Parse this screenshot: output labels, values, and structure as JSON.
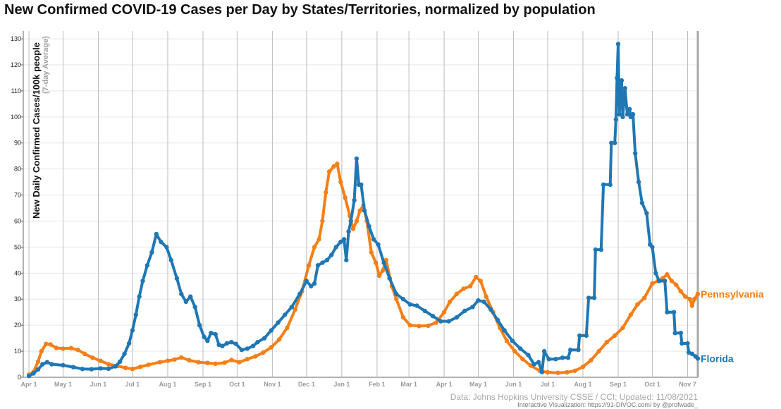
{
  "title": "New Confirmed COVID-19 Cases per Day by States/Territories, normalized by population",
  "source_note": "Data: Johns Hopkins University CSSE / CCI; Updated: 11/08/2021",
  "viz_credit": "Interactive Visualization: https://91-DIVOC.com/ by @profwade_",
  "colors": {
    "pennsylvania": "#f57f17",
    "florida": "#1f77b4",
    "grid": "#e6e6e6",
    "month_line": "#bdbdbd"
  },
  "chart_data": {
    "type": "line",
    "title": "New Confirmed COVID-19 Cases per Day by States/Territories, normalized by population",
    "ylabel": "New Daily Confirmed Cases/100k people",
    "ylabel_sub": "(7-day Average)",
    "xlabel": "",
    "ylim": [
      0,
      133
    ],
    "yticks": [
      0,
      10,
      20,
      30,
      40,
      50,
      60,
      70,
      80,
      90,
      100,
      110,
      120,
      130
    ],
    "xlim": [
      "2020-03-27",
      "2021-11-10"
    ],
    "month_ticks": [
      {
        "date": "2020-04-01",
        "label": "Apr 1"
      },
      {
        "date": "2020-05-01",
        "label": "May 1"
      },
      {
        "date": "2020-06-01",
        "label": "Jun 1"
      },
      {
        "date": "2020-07-01",
        "label": "Jul 1"
      },
      {
        "date": "2020-08-01",
        "label": "Aug 1"
      },
      {
        "date": "2020-09-01",
        "label": "Sep 1"
      },
      {
        "date": "2020-10-01",
        "label": "Oct 1"
      },
      {
        "date": "2020-11-01",
        "label": "Nov 1"
      },
      {
        "date": "2020-12-01",
        "label": "Dec 1"
      },
      {
        "date": "2021-01-01",
        "label": "Jan 1"
      },
      {
        "date": "2021-02-01",
        "label": "Feb 1"
      },
      {
        "date": "2021-03-01",
        "label": "Mar 1"
      },
      {
        "date": "2021-04-01",
        "label": "Apr 1"
      },
      {
        "date": "2021-05-01",
        "label": "May 1"
      },
      {
        "date": "2021-06-01",
        "label": "Jun 1"
      },
      {
        "date": "2021-07-01",
        "label": "Jul 1"
      },
      {
        "date": "2021-08-01",
        "label": "Aug 1"
      },
      {
        "date": "2021-09-01",
        "label": "Sep 1"
      },
      {
        "date": "2021-10-01",
        "label": "Oct 1"
      },
      {
        "date": "2021-11-01",
        "label": "Nov 7"
      }
    ],
    "grid": true,
    "series": [
      {
        "name": "Pennsylvania",
        "points": [
          [
            "2020-04-01",
            1
          ],
          [
            "2020-04-05",
            2
          ],
          [
            "2020-04-09",
            6
          ],
          [
            "2020-04-12",
            10
          ],
          [
            "2020-04-16",
            12.8
          ],
          [
            "2020-04-20",
            12.6
          ],
          [
            "2020-04-25",
            11.3
          ],
          [
            "2020-05-01",
            11
          ],
          [
            "2020-05-08",
            11.2
          ],
          [
            "2020-05-14",
            10.5
          ],
          [
            "2020-05-20",
            9
          ],
          [
            "2020-05-27",
            7.5
          ],
          [
            "2020-06-03",
            6.3
          ],
          [
            "2020-06-10",
            5
          ],
          [
            "2020-06-18",
            4.3
          ],
          [
            "2020-06-25",
            3.6
          ],
          [
            "2020-07-01",
            3.2
          ],
          [
            "2020-07-08",
            4
          ],
          [
            "2020-07-15",
            4.8
          ],
          [
            "2020-07-25",
            5.8
          ],
          [
            "2020-08-01",
            6.3
          ],
          [
            "2020-08-07",
            6.8
          ],
          [
            "2020-08-13",
            7.6
          ],
          [
            "2020-08-20",
            6.5
          ],
          [
            "2020-08-28",
            5.8
          ],
          [
            "2020-09-05",
            5.5
          ],
          [
            "2020-09-12",
            5.2
          ],
          [
            "2020-09-20",
            5.6
          ],
          [
            "2020-09-26",
            6.6
          ],
          [
            "2020-10-03",
            5.8
          ],
          [
            "2020-10-10",
            7
          ],
          [
            "2020-10-17",
            8
          ],
          [
            "2020-10-24",
            9.5
          ],
          [
            "2020-10-31",
            11.5
          ],
          [
            "2020-11-07",
            14.5
          ],
          [
            "2020-11-14",
            19
          ],
          [
            "2020-11-21",
            26
          ],
          [
            "2020-11-27",
            33
          ],
          [
            "2020-12-03",
            43
          ],
          [
            "2020-12-08",
            50
          ],
          [
            "2020-12-12",
            53
          ],
          [
            "2020-12-15",
            60
          ],
          [
            "2020-12-18",
            71
          ],
          [
            "2020-12-21",
            79
          ],
          [
            "2020-12-25",
            81
          ],
          [
            "2020-12-28",
            82
          ],
          [
            "2020-12-31",
            75
          ],
          [
            "2021-01-04",
            69
          ],
          [
            "2021-01-08",
            62
          ],
          [
            "2021-01-11",
            57
          ],
          [
            "2021-01-14",
            60
          ],
          [
            "2021-01-17",
            64
          ],
          [
            "2021-01-20",
            66
          ],
          [
            "2021-01-23",
            60
          ],
          [
            "2021-01-27",
            48
          ],
          [
            "2021-01-31",
            44
          ],
          [
            "2021-02-03",
            39
          ],
          [
            "2021-02-06",
            41
          ],
          [
            "2021-02-09",
            45
          ],
          [
            "2021-02-14",
            35
          ],
          [
            "2021-02-18",
            30
          ],
          [
            "2021-02-24",
            23
          ],
          [
            "2021-03-02",
            20
          ],
          [
            "2021-03-10",
            19.7
          ],
          [
            "2021-03-18",
            19.8
          ],
          [
            "2021-03-25",
            21
          ],
          [
            "2021-04-01",
            25
          ],
          [
            "2021-04-06",
            29
          ],
          [
            "2021-04-12",
            32
          ],
          [
            "2021-04-18",
            34
          ],
          [
            "2021-04-24",
            35
          ],
          [
            "2021-04-29",
            38.5
          ],
          [
            "2021-05-03",
            37
          ],
          [
            "2021-05-08",
            31
          ],
          [
            "2021-05-14",
            25
          ],
          [
            "2021-05-20",
            19
          ],
          [
            "2021-05-26",
            14
          ],
          [
            "2021-06-02",
            10
          ],
          [
            "2021-06-09",
            7
          ],
          [
            "2021-06-16",
            4.5
          ],
          [
            "2021-06-24",
            2.5
          ],
          [
            "2021-07-01",
            1.9
          ],
          [
            "2021-07-10",
            1.7
          ],
          [
            "2021-07-18",
            1.9
          ],
          [
            "2021-07-25",
            2.5
          ],
          [
            "2021-08-01",
            4
          ],
          [
            "2021-08-08",
            6.5
          ],
          [
            "2021-08-15",
            10
          ],
          [
            "2021-08-22",
            13.5
          ],
          [
            "2021-08-29",
            16
          ],
          [
            "2021-09-05",
            19
          ],
          [
            "2021-09-12",
            24
          ],
          [
            "2021-09-18",
            28
          ],
          [
            "2021-09-24",
            30.5
          ],
          [
            "2021-10-01",
            36
          ],
          [
            "2021-10-06",
            37
          ],
          [
            "2021-10-10",
            38
          ],
          [
            "2021-10-14",
            39.5
          ],
          [
            "2021-10-18",
            37
          ],
          [
            "2021-10-22",
            35.5
          ],
          [
            "2021-10-26",
            33
          ],
          [
            "2021-10-30",
            31
          ],
          [
            "2021-11-03",
            30
          ],
          [
            "2021-11-05",
            27.5
          ],
          [
            "2021-11-07",
            30
          ],
          [
            "2021-11-10",
            32
          ]
        ]
      },
      {
        "name": "Florida",
        "points": [
          [
            "2020-04-01",
            0.5
          ],
          [
            "2020-04-05",
            1.5
          ],
          [
            "2020-04-09",
            3
          ],
          [
            "2020-04-13",
            5
          ],
          [
            "2020-04-17",
            5.8
          ],
          [
            "2020-04-21",
            5
          ],
          [
            "2020-05-01",
            4.6
          ],
          [
            "2020-05-10",
            3.9
          ],
          [
            "2020-05-18",
            3.2
          ],
          [
            "2020-05-26",
            3.1
          ],
          [
            "2020-06-03",
            3.4
          ],
          [
            "2020-06-10",
            3.3
          ],
          [
            "2020-06-16",
            4.2
          ],
          [
            "2020-06-20",
            6
          ],
          [
            "2020-06-24",
            9
          ],
          [
            "2020-06-28",
            13
          ],
          [
            "2020-07-01",
            18
          ],
          [
            "2020-07-04",
            24
          ],
          [
            "2020-07-07",
            31
          ],
          [
            "2020-07-10",
            37
          ],
          [
            "2020-07-14",
            43
          ],
          [
            "2020-07-18",
            48
          ],
          [
            "2020-07-22",
            55
          ],
          [
            "2020-07-26",
            52
          ],
          [
            "2020-07-31",
            50
          ],
          [
            "2020-08-04",
            45
          ],
          [
            "2020-08-09",
            38
          ],
          [
            "2020-08-13",
            32
          ],
          [
            "2020-08-17",
            29
          ],
          [
            "2020-08-21",
            31
          ],
          [
            "2020-08-25",
            27
          ],
          [
            "2020-08-29",
            20
          ],
          [
            "2020-09-02",
            15.5
          ],
          [
            "2020-09-05",
            14
          ],
          [
            "2020-09-08",
            17
          ],
          [
            "2020-09-12",
            16.5
          ],
          [
            "2020-09-15",
            12.5
          ],
          [
            "2020-09-18",
            12
          ],
          [
            "2020-09-22",
            13
          ],
          [
            "2020-09-26",
            13.5
          ],
          [
            "2020-09-30",
            12.8
          ],
          [
            "2020-10-05",
            10.5
          ],
          [
            "2020-10-10",
            11
          ],
          [
            "2020-10-15",
            12
          ],
          [
            "2020-10-19",
            13.5
          ],
          [
            "2020-10-25",
            15
          ],
          [
            "2020-10-31",
            18
          ],
          [
            "2020-11-06",
            21
          ],
          [
            "2020-11-12",
            24
          ],
          [
            "2020-11-18",
            27
          ],
          [
            "2020-11-25",
            32
          ],
          [
            "2020-12-01",
            37
          ],
          [
            "2020-12-05",
            35
          ],
          [
            "2020-12-08",
            36
          ],
          [
            "2020-12-11",
            43
          ],
          [
            "2020-12-15",
            44
          ],
          [
            "2020-12-19",
            45
          ],
          [
            "2020-12-23",
            47
          ],
          [
            "2020-12-27",
            50
          ],
          [
            "2020-12-31",
            52
          ],
          [
            "2021-01-03",
            53
          ],
          [
            "2021-01-05",
            45
          ],
          [
            "2021-01-07",
            56
          ],
          [
            "2021-01-09",
            60
          ],
          [
            "2021-01-12",
            68
          ],
          [
            "2021-01-14",
            84
          ],
          [
            "2021-01-16",
            74
          ],
          [
            "2021-01-18",
            74
          ],
          [
            "2021-01-21",
            64
          ],
          [
            "2021-01-25",
            58
          ],
          [
            "2021-01-29",
            53
          ],
          [
            "2021-02-02",
            51
          ],
          [
            "2021-02-07",
            44
          ],
          [
            "2021-02-12",
            38
          ],
          [
            "2021-02-18",
            32
          ],
          [
            "2021-02-24",
            30
          ],
          [
            "2021-03-02",
            28
          ],
          [
            "2021-03-08",
            27.5
          ],
          [
            "2021-03-15",
            25.5
          ],
          [
            "2021-03-22",
            23.5
          ],
          [
            "2021-03-29",
            21.5
          ],
          [
            "2021-04-05",
            21.5
          ],
          [
            "2021-04-12",
            23
          ],
          [
            "2021-04-19",
            25.5
          ],
          [
            "2021-04-26",
            27
          ],
          [
            "2021-05-01",
            29.5
          ],
          [
            "2021-05-06",
            29
          ],
          [
            "2021-05-12",
            26
          ],
          [
            "2021-05-18",
            22
          ],
          [
            "2021-05-24",
            18
          ],
          [
            "2021-05-31",
            14
          ],
          [
            "2021-06-07",
            11
          ],
          [
            "2021-06-14",
            8.5
          ],
          [
            "2021-06-19",
            5
          ],
          [
            "2021-06-23",
            5.8
          ],
          [
            "2021-06-26",
            2
          ],
          [
            "2021-06-28",
            10
          ],
          [
            "2021-07-02",
            7
          ],
          [
            "2021-07-08",
            7
          ],
          [
            "2021-07-14",
            7.5
          ],
          [
            "2021-07-19",
            7.5
          ],
          [
            "2021-07-21",
            10.5
          ],
          [
            "2021-07-28",
            10.5
          ],
          [
            "2021-07-29",
            16
          ],
          [
            "2021-08-04",
            16
          ],
          [
            "2021-08-06",
            30.5
          ],
          [
            "2021-08-11",
            30.5
          ],
          [
            "2021-08-12",
            49
          ],
          [
            "2021-08-17",
            49
          ],
          [
            "2021-08-19",
            74
          ],
          [
            "2021-08-25",
            74
          ],
          [
            "2021-08-26",
            90
          ],
          [
            "2021-08-29",
            90
          ],
          [
            "2021-08-30",
            99
          ],
          [
            "2021-08-31",
            115
          ],
          [
            "2021-09-01",
            128
          ],
          [
            "2021-09-02",
            101
          ],
          [
            "2021-09-04",
            114
          ],
          [
            "2021-09-05",
            100
          ],
          [
            "2021-09-07",
            111
          ],
          [
            "2021-09-09",
            101
          ],
          [
            "2021-09-11",
            103
          ],
          [
            "2021-09-12",
            100
          ],
          [
            "2021-09-14",
            101
          ],
          [
            "2021-09-16",
            86
          ],
          [
            "2021-09-19",
            75
          ],
          [
            "2021-09-22",
            67
          ],
          [
            "2021-09-26",
            63
          ],
          [
            "2021-09-29",
            51
          ],
          [
            "2021-10-01",
            50
          ],
          [
            "2021-10-04",
            40
          ],
          [
            "2021-10-07",
            37
          ],
          [
            "2021-10-12",
            37
          ],
          [
            "2021-10-14",
            25
          ],
          [
            "2021-10-20",
            25
          ],
          [
            "2021-10-21",
            17
          ],
          [
            "2021-10-26",
            17
          ],
          [
            "2021-10-27",
            13
          ],
          [
            "2021-11-01",
            13
          ],
          [
            "2021-11-02",
            9.5
          ],
          [
            "2021-11-05",
            9
          ],
          [
            "2021-11-08",
            8
          ],
          [
            "2021-11-10",
            7.2
          ]
        ]
      }
    ]
  }
}
